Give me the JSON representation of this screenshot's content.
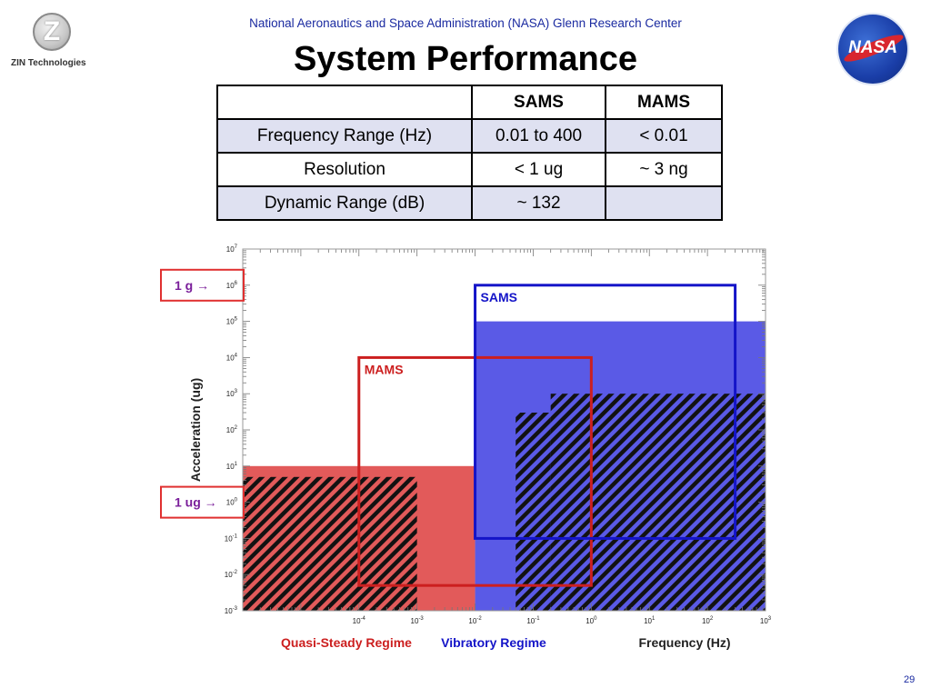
{
  "header": {
    "org": "National Aeronautics and Space Administration (NASA) Glenn Research Center",
    "title": "System Performance",
    "zin_logo_text": "ZIN Technologies",
    "nasa_logo_text": "NASA"
  },
  "table": {
    "headers": [
      "",
      "SAMS",
      "MAMS"
    ],
    "rows": [
      {
        "label": "Frequency Range (Hz)",
        "sams": "0.01 to 400",
        "mams": "< 0.01"
      },
      {
        "label": "Resolution",
        "sams": "< 1 ug",
        "mams": "~ 3 ng"
      },
      {
        "label": "Dynamic Range (dB)",
        "sams": "~ 132",
        "mams": ""
      }
    ]
  },
  "chart_data": {
    "type": "area",
    "xscale": "log",
    "yscale": "log",
    "xlim": [
      1e-06,
      1000
    ],
    "ylim": [
      0.001,
      10000000
    ],
    "ylabel": "Acceleration (ug)",
    "xlabel": "Frequency (Hz)",
    "x_ticks": [
      "10^-4",
      "10^-3",
      "10^-2",
      "10^-1",
      "10^0",
      "10^1",
      "10^2",
      "10^3"
    ],
    "y_ticks": [
      "10^-3",
      "10^-2",
      "10^-1",
      "10^0",
      "10^1",
      "10^2",
      "10^3",
      "10^4",
      "10^5",
      "10^6",
      "10^7"
    ],
    "regimes": [
      "Quasi-Steady Regime",
      "Vibratory Regime"
    ],
    "annotations": [
      "1 g →",
      "1 ug →"
    ],
    "boxes": [
      {
        "name": "MAMS",
        "color": "#cc1f1f",
        "x": [
          0.0001,
          1
        ],
        "y": [
          0.005,
          10000
        ]
      },
      {
        "name": "SAMS",
        "color": "#1414c8",
        "x": [
          0.01,
          300
        ],
        "y": [
          0.1,
          1000000
        ]
      }
    ],
    "fills": [
      {
        "color": "#e25a5a",
        "x": [
          1e-06,
          0.01
        ],
        "y": [
          0.001,
          10
        ]
      },
      {
        "color": "#5a5ae6",
        "x": [
          0.01,
          1000
        ],
        "y": [
          0.001,
          100000
        ]
      }
    ],
    "hatched": [
      {
        "color": "#e25a5a",
        "x": [
          1e-06,
          0.001
        ],
        "y": [
          0.001,
          5
        ]
      },
      {
        "color": "#5a5ae6",
        "x": [
          0.05,
          0.2
        ],
        "y": [
          0.001,
          300
        ]
      },
      {
        "color": "#5a5ae6",
        "x": [
          0.2,
          1000
        ],
        "y": [
          0.001,
          1000
        ]
      }
    ]
  },
  "page_number": "29"
}
